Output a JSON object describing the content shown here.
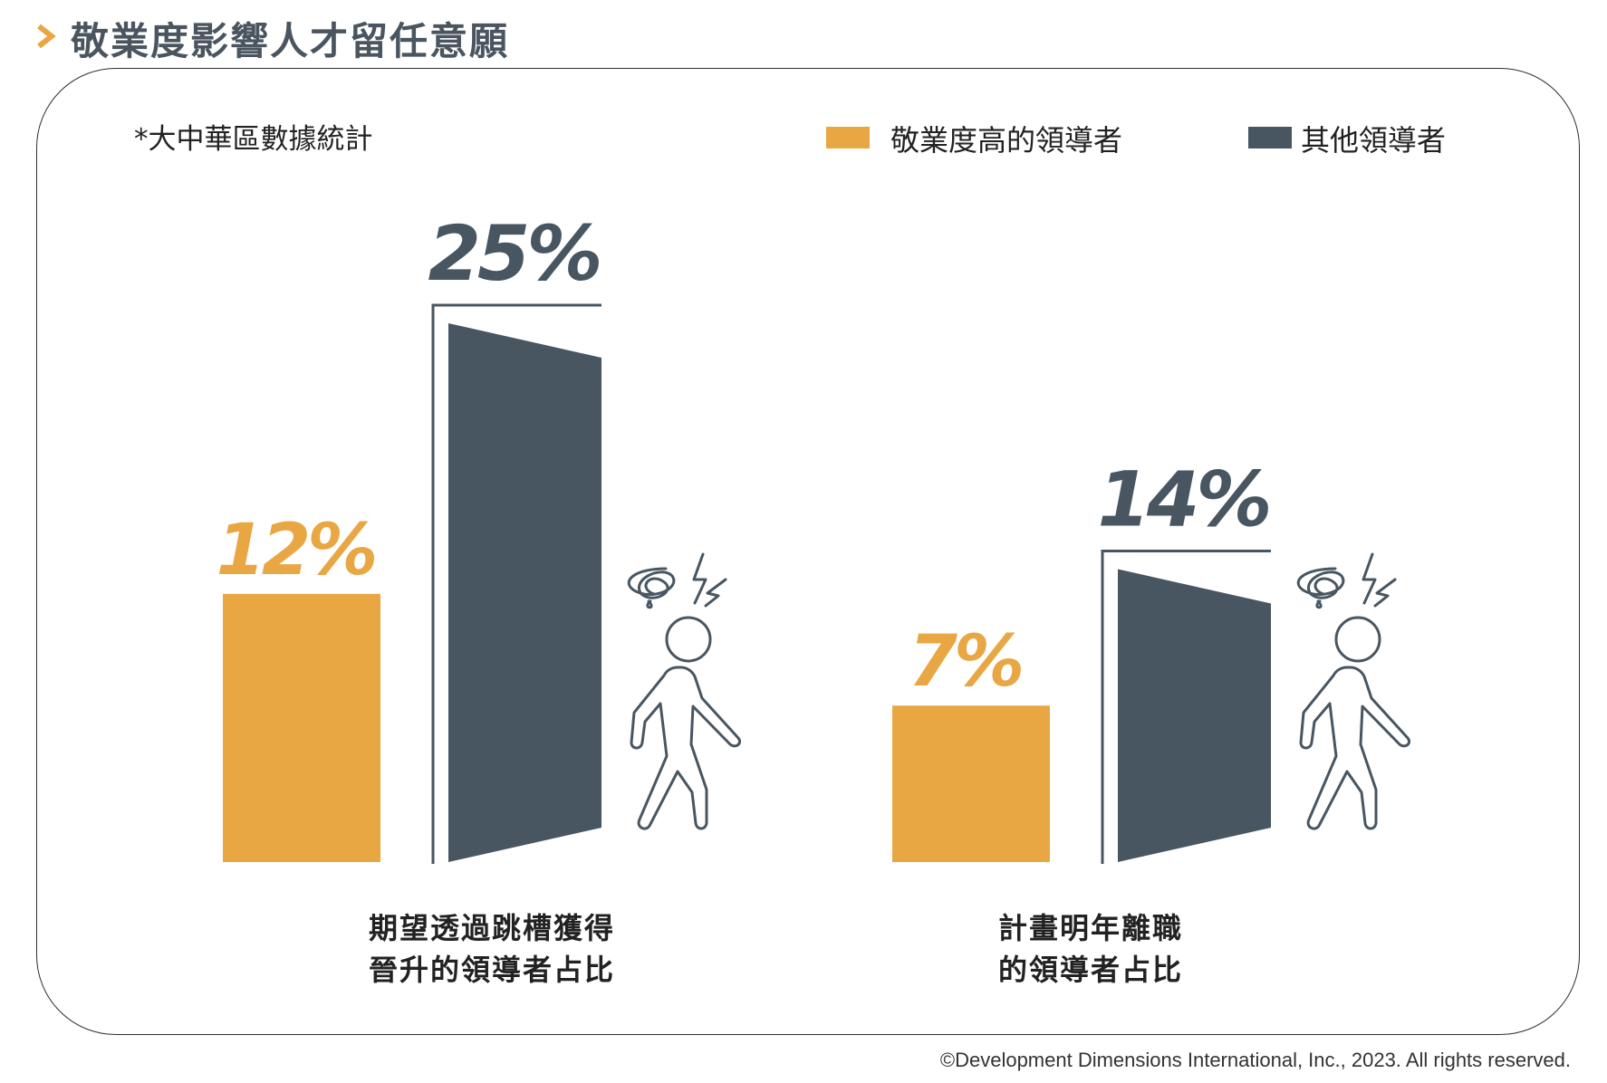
{
  "header": {
    "title": "敬業度影響人才留任意願"
  },
  "note": "*大中華區數據統計",
  "legend": [
    {
      "label": "敬業度高的領導者",
      "color": "#E8A743"
    },
    {
      "label": "其他領導者",
      "color": "#485662"
    }
  ],
  "chart_data": {
    "type": "bar",
    "categories": [
      "期望透過跳槽獲得晉升的領導者占比",
      "計畫明年離職的領導者占比"
    ],
    "category_lines": [
      [
        "期望透過跳槽獲得",
        "晉升的領導者占比"
      ],
      [
        "計畫明年離職",
        "的領導者占比"
      ]
    ],
    "series": [
      {
        "name": "敬業度高的領導者",
        "values": [
          12,
          7
        ],
        "labels": [
          "12%",
          "7%"
        ],
        "color": "#E8A743"
      },
      {
        "name": "其他領導者",
        "values": [
          25,
          14
        ],
        "labels": [
          "25%",
          "14%"
        ],
        "color": "#485662"
      }
    ],
    "unit": "%",
    "ylim": [
      0,
      25
    ],
    "grid": false,
    "legend_position": "top-right"
  },
  "footer": {
    "copyright": "©Development Dimensions International, Inc., 2023. All rights reserved."
  },
  "icons": [
    "walking-person-icon",
    "stressed-scribble-icon",
    "lightning-icon",
    "door-icon"
  ]
}
